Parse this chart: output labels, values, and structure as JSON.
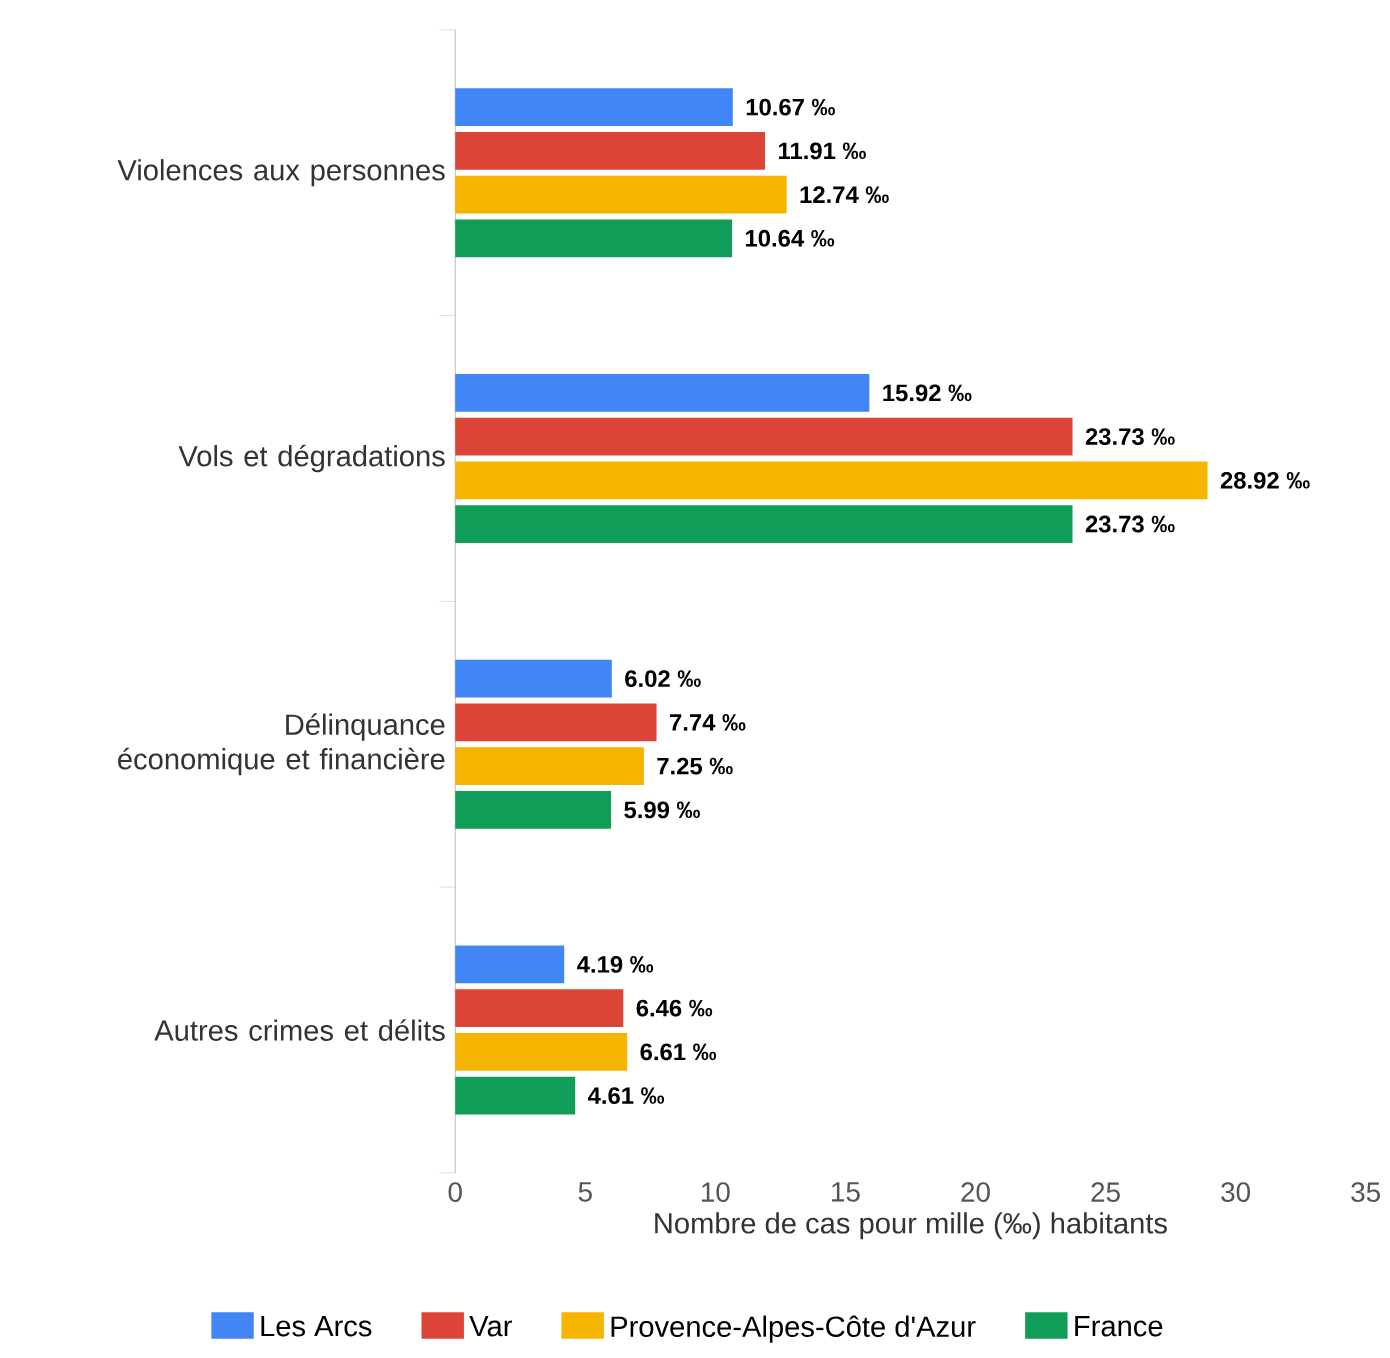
{
  "chart_data": {
    "type": "bar",
    "orientation": "horizontal",
    "xlabel": "Nombre de cas pour mille (‰) habitants",
    "categories": [
      "Violences aux personnes",
      "Vols et dégradations",
      "Délinquance économique et financière",
      "Autres crimes et délits"
    ],
    "series": [
      {
        "name": "Les Arcs",
        "color": "#4285f4",
        "values": [
          10.67,
          15.92,
          6.02,
          4.19
        ],
        "value_labels": [
          "10.67 ‰",
          "15.92 ‰",
          "6.02 ‰",
          "4.19 ‰"
        ]
      },
      {
        "name": "Var",
        "color": "#db4437",
        "values": [
          11.91,
          23.73,
          7.74,
          6.46
        ],
        "value_labels": [
          "11.91 ‰",
          "23.73 ‰",
          "7.74 ‰",
          "6.46 ‰"
        ]
      },
      {
        "name": "Provence-Alpes-Côte d'Azur",
        "color": "#f4b400",
        "values": [
          12.74,
          28.92,
          7.25,
          6.61
        ],
        "value_labels": [
          "12.74 ‰",
          "28.92 ‰",
          "7.25 ‰",
          "6.61 ‰"
        ]
      },
      {
        "name": "France",
        "color": "#0f9d58",
        "values": [
          10.64,
          23.73,
          5.99,
          4.61
        ],
        "value_labels": [
          "10.64 ‰",
          "23.73 ‰",
          "5.99 ‰",
          "4.61 ‰"
        ]
      }
    ],
    "xlim": [
      0,
      35
    ],
    "xticks": [
      0,
      5,
      10,
      15,
      20,
      25,
      30,
      35
    ],
    "grid": false,
    "legend": "bottom"
  }
}
